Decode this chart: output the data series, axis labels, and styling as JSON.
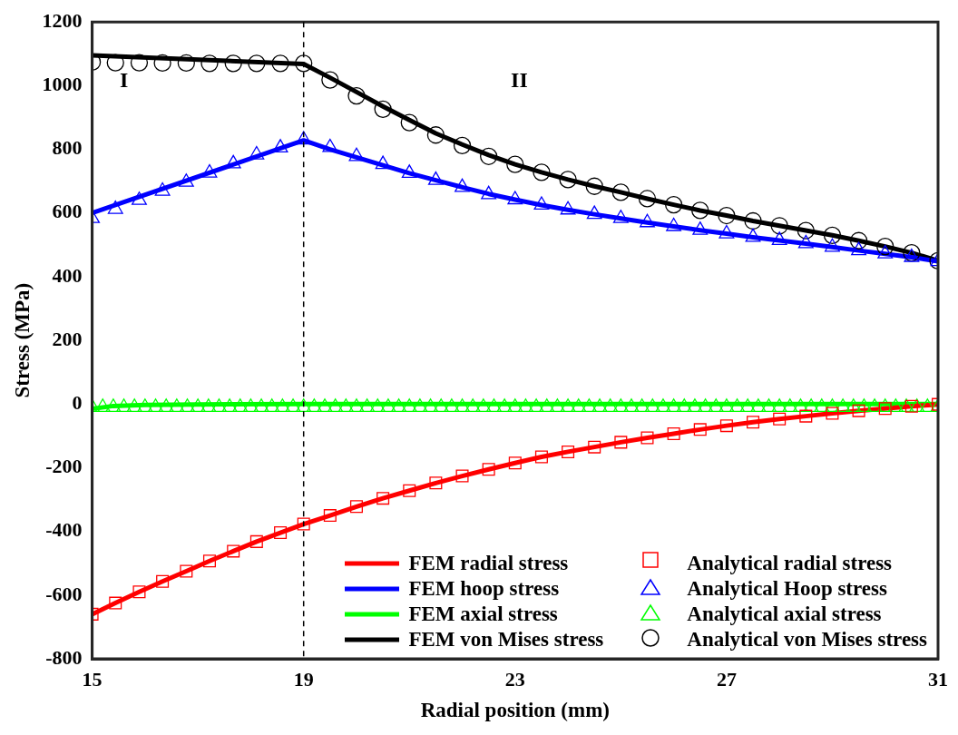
{
  "chart_data": {
    "type": "line",
    "xlabel": "Radial position (mm)",
    "ylabel": "Stress (MPa)",
    "xlim": [
      15,
      31
    ],
    "xticks": [
      15,
      19,
      23,
      27,
      31
    ],
    "ylim": [
      -800,
      1200
    ],
    "yticks": [
      -800,
      -600,
      -400,
      -200,
      0,
      200,
      400,
      600,
      800,
      1000,
      1200
    ],
    "grid": false,
    "legend": "bottom right",
    "ref_lines": [
      {
        "axis": "x",
        "value": 19,
        "color": "#000000",
        "line_style": "dashed"
      }
    ],
    "annotations": [
      "I",
      "II"
    ],
    "series": [
      {
        "name": "FEM radial stress",
        "marker": "none",
        "color": "#ff0000",
        "x": [
          15,
          15.44,
          15.89,
          16.33,
          16.78,
          17.22,
          17.67,
          18.11,
          18.56,
          19,
          19.5,
          20,
          20.5,
          21,
          21.5,
          22,
          22.5,
          23,
          23.5,
          24,
          24.5,
          25,
          25.5,
          26,
          26.5,
          27,
          27.5,
          28,
          28.5,
          29,
          29.5,
          30,
          30.5,
          31
        ],
        "values": [
          -660,
          -625,
          -590,
          -557,
          -525,
          -493,
          -462,
          -432,
          -404,
          -377,
          -350,
          -322,
          -296,
          -272,
          -248,
          -226,
          -205,
          -185,
          -166,
          -150,
          -135,
          -120,
          -106,
          -93,
          -80,
          -68,
          -57,
          -47,
          -38,
          -29,
          -21,
          -14,
          -7,
          -1
        ]
      },
      {
        "name": "FEM hoop stress",
        "marker": "none",
        "color": "#0000ff",
        "x": [
          15,
          19,
          19.5,
          20,
          20.5,
          21,
          21.5,
          22,
          22.5,
          23,
          23.5,
          24,
          24.5,
          25,
          25.5,
          26,
          26.5,
          27,
          27.5,
          28,
          28.5,
          29,
          29.5,
          30,
          30.5,
          31
        ],
        "values": [
          600,
          828,
          800,
          775,
          750,
          725,
          703,
          681,
          660,
          642,
          625,
          610,
          596,
          583,
          570,
          558,
          546,
          535,
          524,
          514,
          504,
          493,
          482,
          472,
          461,
          448
        ]
      },
      {
        "name": "FEM axial stress",
        "marker": "none",
        "color": "#00ff00",
        "x": [
          15,
          15.4,
          16,
          17,
          19,
          31
        ],
        "values": [
          -15,
          -6,
          -3,
          -1,
          0,
          0
        ]
      },
      {
        "name": "FEM von Mises stress",
        "marker": "none",
        "color": "#000000",
        "x": [
          15,
          19,
          19.5,
          20,
          20.5,
          21,
          21.5,
          22,
          22.5,
          23,
          23.5,
          24,
          24.5,
          25,
          25.5,
          26,
          26.5,
          27,
          27.5,
          28,
          28.5,
          29,
          29.5,
          30,
          30.5,
          31
        ],
        "values": [
          1095,
          1068,
          1025,
          980,
          935,
          892,
          850,
          815,
          782,
          753,
          728,
          705,
          684,
          665,
          645,
          626,
          608,
          592,
          575,
          560,
          545,
          530,
          513,
          495,
          475,
          450
        ]
      },
      {
        "name": "Analytical radial stress",
        "type": "scatter",
        "marker": "square",
        "color": "#ff0000",
        "x": [
          15,
          15.44,
          15.89,
          16.33,
          16.78,
          17.22,
          17.67,
          18.11,
          18.56,
          19,
          19.5,
          20,
          20.5,
          21,
          21.5,
          22,
          22.5,
          23,
          23.5,
          24,
          24.5,
          25,
          25.5,
          26,
          26.5,
          27,
          27.5,
          28,
          28.5,
          29,
          29.5,
          30,
          30.5,
          31
        ],
        "values": [
          -660,
          -625,
          -590,
          -557,
          -525,
          -493,
          -462,
          -432,
          -404,
          -377,
          -350,
          -322,
          -296,
          -272,
          -248,
          -226,
          -205,
          -185,
          -166,
          -150,
          -135,
          -120,
          -106,
          -93,
          -80,
          -68,
          -57,
          -47,
          -38,
          -29,
          -21,
          -14,
          -7,
          -1
        ]
      },
      {
        "name": "Analytical Hoop stress",
        "type": "scatter",
        "marker": "triangle",
        "color": "#0000ff",
        "x": [
          15,
          15.44,
          15.89,
          16.33,
          16.78,
          17.22,
          17.67,
          18.11,
          18.56,
          19,
          19.5,
          20,
          20.5,
          21,
          21.5,
          22,
          22.5,
          23,
          23.5,
          24,
          24.5,
          25,
          25.5,
          26,
          26.5,
          27,
          27.5,
          28,
          28.5,
          29,
          29.5,
          30,
          30.5,
          31
        ],
        "values": [
          583,
          612,
          640,
          669,
          697,
          726,
          755,
          783,
          805,
          830,
          806,
          778,
          753,
          725,
          703,
          681,
          658,
          642,
          625,
          610,
          596,
          583,
          570,
          558,
          546,
          535,
          524,
          514,
          504,
          493,
          482,
          472,
          461,
          448
        ]
      },
      {
        "name": "Analytical axial stress",
        "type": "scatter",
        "marker": "triangle",
        "color": "#00ff00",
        "x": [
          15,
          15.2,
          15.4,
          15.6,
          15.8,
          16,
          16.2,
          16.4,
          16.6,
          16.8,
          17,
          17.2,
          17.4,
          17.6,
          17.8,
          18,
          18.2,
          18.4,
          18.6,
          18.8,
          19,
          19.2,
          19.4,
          19.6,
          19.8,
          20,
          20.2,
          20.4,
          20.6,
          20.8,
          21,
          21.2,
          21.4,
          21.6,
          21.8,
          22,
          22.2,
          22.4,
          22.6,
          22.8,
          23,
          23.2,
          23.4,
          23.6,
          23.8,
          24,
          24.2,
          24.4,
          24.6,
          24.8,
          25,
          25.2,
          25.4,
          25.6,
          25.8,
          26,
          26.2,
          26.4,
          26.6,
          26.8,
          27,
          27.2,
          27.4,
          27.6,
          27.8,
          28,
          28.2,
          28.4,
          28.6,
          28.8,
          29,
          29.2,
          29.4,
          29.6,
          29.8,
          30,
          30.2,
          30.4,
          30.6,
          30.8,
          31
        ],
        "values": [
          -10,
          -10,
          -10,
          -10,
          -10,
          -10,
          -10,
          -10,
          -10,
          -10,
          -10,
          -10,
          -10,
          -10,
          -10,
          -10,
          -10,
          -10,
          -10,
          -10,
          -10,
          -10,
          -10,
          -10,
          -10,
          -10,
          -10,
          -10,
          -10,
          -10,
          -10,
          -10,
          -10,
          -10,
          -10,
          -10,
          -10,
          -10,
          -10,
          -10,
          -10,
          -10,
          -10,
          -10,
          -10,
          -10,
          -10,
          -10,
          -10,
          -10,
          -10,
          -10,
          -10,
          -10,
          -10,
          -10,
          -10,
          -10,
          -10,
          -10,
          -10,
          -10,
          -10,
          -10,
          -10,
          -10,
          -10,
          -10,
          -10,
          -10,
          -10,
          -10,
          -10,
          -10,
          -10,
          -10,
          -10,
          -10,
          -10,
          -10,
          -10
        ]
      },
      {
        "name": "Analytical von Mises stress",
        "type": "scatter",
        "marker": "circle",
        "color": "#000000",
        "x": [
          15,
          15.44,
          15.89,
          16.33,
          16.78,
          17.22,
          17.67,
          18.11,
          18.56,
          19,
          19.5,
          20,
          20.5,
          21,
          21.5,
          22,
          22.5,
          23,
          23.5,
          24,
          24.5,
          25,
          25.5,
          26,
          26.5,
          27,
          27.5,
          28,
          28.5,
          29,
          29.5,
          30,
          30.5,
          31
        ],
        "values": [
          1074,
          1072,
          1072,
          1071,
          1071,
          1070,
          1070,
          1070,
          1070,
          1070,
          1018,
          968,
          926,
          884,
          845,
          812,
          778,
          753,
          728,
          705,
          684,
          665,
          645,
          626,
          608,
          592,
          575,
          560,
          545,
          530,
          513,
          495,
          475,
          450
        ]
      }
    ]
  }
}
